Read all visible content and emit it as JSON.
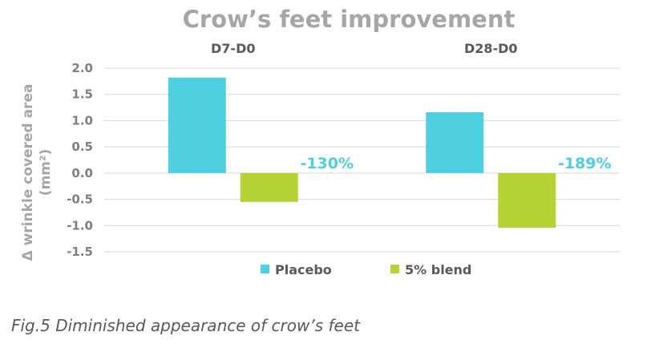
{
  "chart_data": {
    "type": "bar",
    "title": "Crow’s feet improvement",
    "ylabel_line1": "Δ wrinkle covered area",
    "ylabel_line2": "(mm²)",
    "categories": [
      "D7-D0",
      "D28-D0"
    ],
    "series": [
      {
        "name": "Placebo",
        "values": [
          1.82,
          1.16
        ],
        "color": "#4ecfe0"
      },
      {
        "name": "5% blend",
        "values": [
          -0.55,
          -1.04
        ],
        "color": "#b5d334"
      }
    ],
    "percent_labels": [
      "-130%",
      "-189%"
    ],
    "percent_color": "#4ecfe0",
    "ylim": [
      -1.5,
      2.0
    ],
    "yticks": [
      "2.0",
      "1.5",
      "1.0",
      "0.5",
      "0.0",
      "-0.5",
      "-1.0",
      "-1.5"
    ],
    "grid": true,
    "legend_position": "bottom"
  },
  "caption": "Fig.5 Diminished appearance of crow’s feet"
}
